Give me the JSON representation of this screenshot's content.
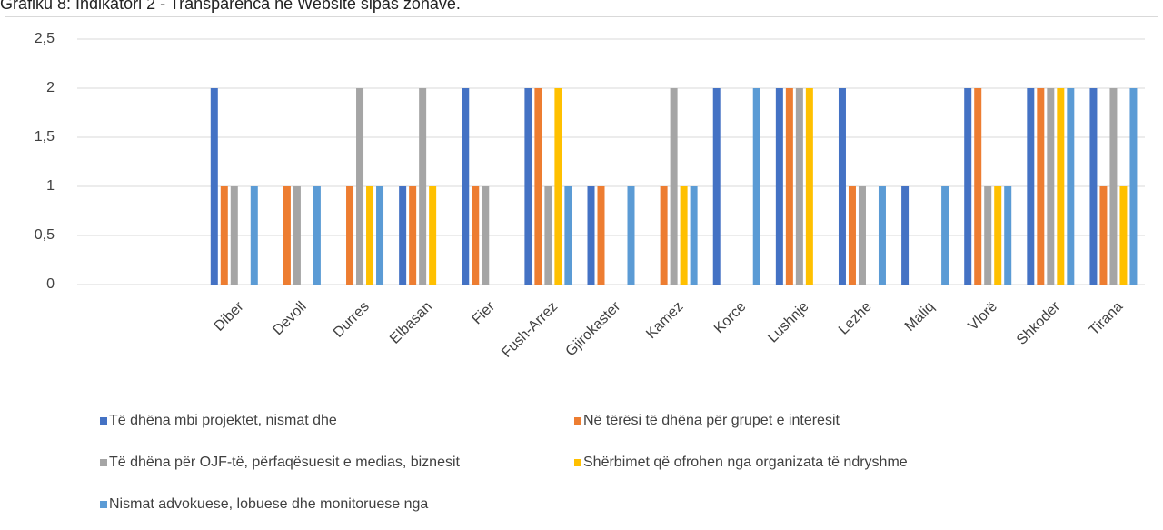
{
  "chart_data": {
    "type": "bar",
    "title": "Grafiku 8: Indikatori 2 - Transparenca në Website sipas zonave.",
    "categories": [
      null,
      null,
      "Diber",
      "Devoll",
      "Durres",
      "Elbasan",
      "Fier",
      "Fush-Arrez",
      "Gjirokaster",
      "Kamez",
      "Korce",
      "Lushnje",
      "Lezhe",
      "Maliq",
      "Vlorë",
      "Shkoder",
      "Tirana"
    ],
    "series": [
      {
        "name": "Të dhëna mbi projektet, nismat dhe",
        "color": "#4472c4",
        "values": [
          null,
          null,
          2,
          0,
          0,
          1,
          2,
          2,
          1,
          0,
          2,
          2,
          2,
          1,
          2,
          2,
          2
        ]
      },
      {
        "name": "Në tërësi të dhëna për grupet e interesit",
        "color": "#ed7d31",
        "values": [
          null,
          null,
          1,
          1,
          1,
          1,
          1,
          2,
          1,
          1,
          0,
          2,
          1,
          0,
          2,
          2,
          1
        ]
      },
      {
        "name": "Të dhëna për OJF-të, përfaqësuesit e medias, biznesit",
        "color": "#a5a5a5",
        "values": [
          null,
          null,
          1,
          1,
          2,
          2,
          1,
          1,
          0,
          2,
          0,
          2,
          1,
          0,
          1,
          2,
          2
        ]
      },
      {
        "name": "Shërbimet që ofrohen nga organizata të ndryshme",
        "color": "#ffc000",
        "values": [
          null,
          null,
          0,
          0,
          1,
          1,
          0,
          2,
          0,
          1,
          0,
          2,
          0,
          0,
          1,
          2,
          1
        ]
      },
      {
        "name": "Nismat advokuese, lobuese dhe monitoruese nga",
        "color": "#5b9bd5",
        "values": [
          null,
          null,
          1,
          1,
          1,
          0,
          0,
          1,
          1,
          1,
          2,
          0,
          1,
          1,
          1,
          2,
          2
        ]
      }
    ],
    "ylim": [
      0,
      2.5
    ],
    "yticks": [
      0,
      {
        "value": 0.5,
        "label": "0,5"
      },
      1,
      {
        "value": 1.5,
        "label": "1,5"
      },
      2,
      {
        "value": 2.5,
        "label": "2,5"
      }
    ],
    "grid": true,
    "legend": "bottom"
  }
}
